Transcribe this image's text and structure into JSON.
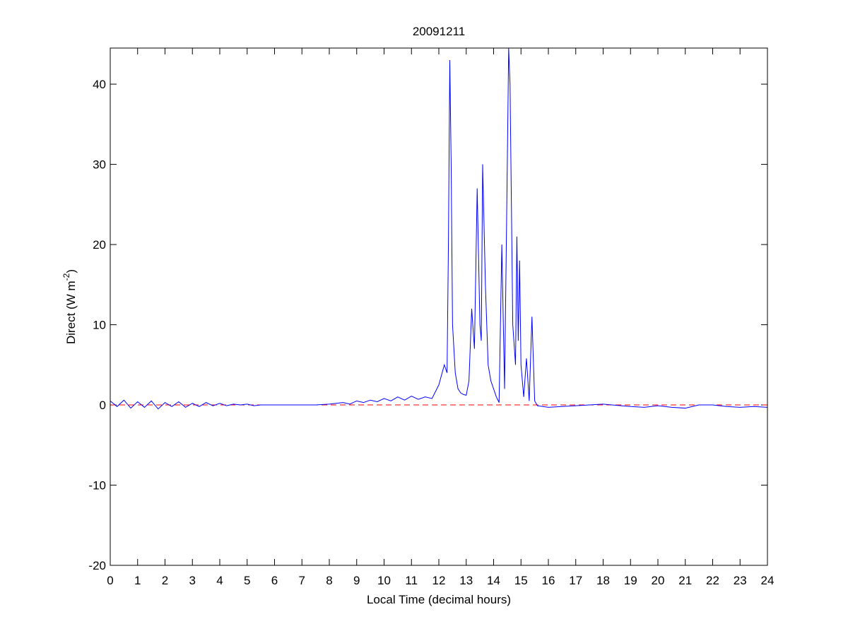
{
  "chart_data": {
    "type": "line",
    "title": "20091211",
    "xlabel": "Local Time (decimal hours)",
    "ylabel": [
      "Direct (W m",
      "-2",
      ")"
    ],
    "x": [
      0,
      0.25,
      0.5,
      0.75,
      1,
      1.25,
      1.5,
      1.75,
      2,
      2.25,
      2.5,
      2.75,
      3,
      3.25,
      3.5,
      3.75,
      4,
      4.25,
      4.5,
      4.75,
      5,
      5.25,
      5.5,
      5.75,
      6,
      6.5,
      7,
      7.5,
      8,
      8.25,
      8.5,
      8.75,
      9,
      9.25,
      9.5,
      9.75,
      10,
      10.25,
      10.5,
      10.75,
      11,
      11.25,
      11.5,
      11.75,
      12,
      12.2,
      12.3,
      12.35,
      12.4,
      12.45,
      12.5,
      12.6,
      12.7,
      12.8,
      12.9,
      13,
      13.1,
      13.2,
      13.3,
      13.4,
      13.5,
      13.55,
      13.6,
      13.7,
      13.8,
      13.9,
      14,
      14.1,
      14.2,
      14.3,
      14.4,
      14.5,
      14.55,
      14.6,
      14.7,
      14.8,
      14.85,
      14.9,
      14.95,
      15,
      15.1,
      15.2,
      15.3,
      15.4,
      15.5,
      15.6,
      16,
      17,
      18,
      19,
      19.5,
      20,
      20.5,
      21,
      21.5,
      22,
      22.5,
      23,
      23.5,
      24
    ],
    "values": [
      0.5,
      -0.2,
      0.6,
      -0.4,
      0.4,
      -0.3,
      0.5,
      -0.5,
      0.3,
      -0.2,
      0.4,
      -0.3,
      0.2,
      -0.2,
      0.3,
      -0.1,
      0.2,
      -0.1,
      0.1,
      0,
      0.1,
      -0.1,
      0,
      0,
      0,
      0,
      0,
      0,
      0.1,
      0.2,
      0.3,
      0.1,
      0.5,
      0.3,
      0.6,
      0.4,
      0.8,
      0.5,
      1.0,
      0.6,
      1.1,
      0.7,
      1.0,
      0.8,
      2.5,
      5,
      4,
      20,
      43,
      30,
      10,
      4,
      2,
      1.5,
      1.3,
      1.2,
      3,
      12,
      7,
      27,
      10,
      8,
      30,
      15,
      5,
      3,
      2,
      1,
      0.3,
      20,
      2,
      30,
      44.5,
      40,
      10,
      5,
      21,
      8,
      18,
      5,
      1,
      5.8,
      0.5,
      11,
      0.5,
      -0.1,
      -0.3,
      -0.1,
      0.1,
      -0.2,
      -0.3,
      -0.1,
      -0.3,
      -0.4,
      0,
      0,
      -0.2,
      -0.3,
      -0.2,
      -0.3
    ],
    "color": "#0000ff",
    "hline": {
      "value": 0,
      "color": "#ff0000"
    },
    "xlim": [
      0,
      24
    ],
    "xticks": [
      0,
      1,
      2,
      3,
      4,
      5,
      6,
      7,
      8,
      9,
      10,
      11,
      12,
      13,
      14,
      15,
      16,
      17,
      18,
      19,
      20,
      21,
      22,
      23,
      24
    ],
    "ylim": [
      -20,
      44.5
    ],
    "yticks": [
      -20,
      -10,
      0,
      10,
      20,
      30,
      40
    ],
    "grid": false
  }
}
